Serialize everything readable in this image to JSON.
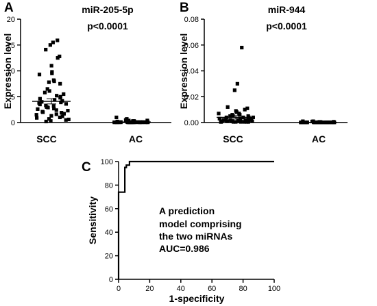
{
  "panels": [
    {
      "letter": "A"
    },
    {
      "letter": "B"
    },
    {
      "letter": "C"
    }
  ],
  "chart_data": [
    {
      "type": "scatter",
      "title": "miR-205-5p",
      "subtitle": "p<0.0001",
      "xlabel": "",
      "ylabel": "Expression level",
      "categories": [
        "SCC",
        "AC"
      ],
      "ylim": [
        0,
        20
      ],
      "yticks": [
        "0",
        "5",
        "10",
        "15",
        "20"
      ],
      "points": {
        "SCC": [
          15.9,
          15.5,
          15.0,
          14.1,
          12.8,
          12.5,
          11.0,
          9.8,
          9.5,
          9.3,
          8.2,
          8.0,
          7.8,
          7.5,
          6.5,
          6.1,
          5.8,
          5.5,
          5.2,
          5.0,
          4.8,
          4.6,
          4.4,
          4.2,
          4.0,
          3.9,
          3.8,
          3.6,
          3.5,
          3.3,
          3.2,
          3.0,
          2.9,
          2.7,
          2.6,
          2.4,
          2.3,
          2.1,
          2.0,
          1.9,
          1.7,
          1.6,
          1.5,
          1.3,
          1.2,
          1.0,
          0.9,
          0.7,
          0.6,
          0.5,
          0.3,
          0.2
        ],
        "AC": [
          1.0,
          0.7,
          0.5,
          0.4,
          0.3,
          0.3,
          0.2,
          0.2,
          0.2,
          0.1,
          0.1,
          0.1,
          0.1,
          0.1,
          0.1,
          0.05,
          0.05,
          0.05,
          0.05,
          0.05,
          0.05,
          0.05,
          0.05,
          0.05,
          0.05,
          0.05,
          0.05,
          0.05,
          0.05,
          0.05,
          0.05,
          0.05,
          0.05,
          0.05,
          0.05,
          0.05,
          0.05,
          0.05,
          0.05,
          0.05,
          0.4,
          0.2,
          0.1
        ]
      },
      "mean": {
        "SCC": 4.1,
        "AC": 0.12
      },
      "sem": {
        "SCC": 0.5,
        "AC": 0.03
      }
    },
    {
      "type": "scatter",
      "title": "miR-944",
      "subtitle": "p<0.0001",
      "xlabel": "",
      "ylabel": "Expression level",
      "categories": [
        "SCC",
        "AC"
      ],
      "ylim": [
        0,
        0.08
      ],
      "yticks": [
        "0.00",
        "0.02",
        "0.04",
        "0.06",
        "0.08"
      ],
      "points": {
        "SCC": [
          0.058,
          0.03,
          0.025,
          0.012,
          0.011,
          0.01,
          0.009,
          0.008,
          0.008,
          0.007,
          0.007,
          0.006,
          0.006,
          0.005,
          0.005,
          0.005,
          0.004,
          0.004,
          0.004,
          0.004,
          0.003,
          0.003,
          0.003,
          0.003,
          0.003,
          0.002,
          0.002,
          0.002,
          0.002,
          0.002,
          0.002,
          0.001,
          0.001,
          0.001,
          0.001,
          0.001,
          0.001,
          0.001,
          0.001,
          0.001,
          0.0005,
          0.0005,
          0.0005,
          0.0005,
          0.0005,
          0.0005,
          0.0005,
          0.0005
        ],
        "AC": [
          0.001,
          0.001,
          0.0008,
          0.0006,
          0.0005,
          0.0004,
          0.0004,
          0.0003,
          0.0003,
          0.0002,
          0.0002,
          0.0002,
          0.0002,
          0.0001,
          0.0001,
          0.0001,
          0.0001,
          0.0001,
          0.0001,
          0.0001,
          0.0001,
          0.0001,
          0.0001,
          0.0001,
          0.0001,
          0.0001,
          0.0001,
          0.0001,
          0.0001,
          0.0001,
          0.0001,
          0.0001,
          0.0001,
          0.0001,
          0.0001,
          0.0001,
          0.0001,
          0.0001,
          0.0001,
          0.0001
        ]
      },
      "mean": {
        "SCC": 0.004,
        "AC": 0.0002
      },
      "sem": {
        "SCC": 0.0013,
        "AC": 4e-05
      }
    },
    {
      "type": "line",
      "title": "",
      "xlabel": "1-specificity",
      "ylabel": "Sensitivity",
      "xlim": [
        0,
        100
      ],
      "ylim": [
        0,
        100
      ],
      "xticks": [
        "0",
        "20",
        "40",
        "60",
        "80",
        "100"
      ],
      "yticks": [
        "0",
        "20",
        "40",
        "60",
        "80",
        "100"
      ],
      "series": [
        {
          "x": [
            0,
            0,
            4,
            4,
            5,
            5,
            7,
            7,
            100
          ],
          "y": [
            0,
            74,
            74,
            95,
            95,
            97,
            97,
            100,
            100
          ]
        }
      ],
      "annotation": [
        "A prediction",
        "model comprising",
        "the two miRNAs",
        "AUC=0.986"
      ]
    }
  ]
}
